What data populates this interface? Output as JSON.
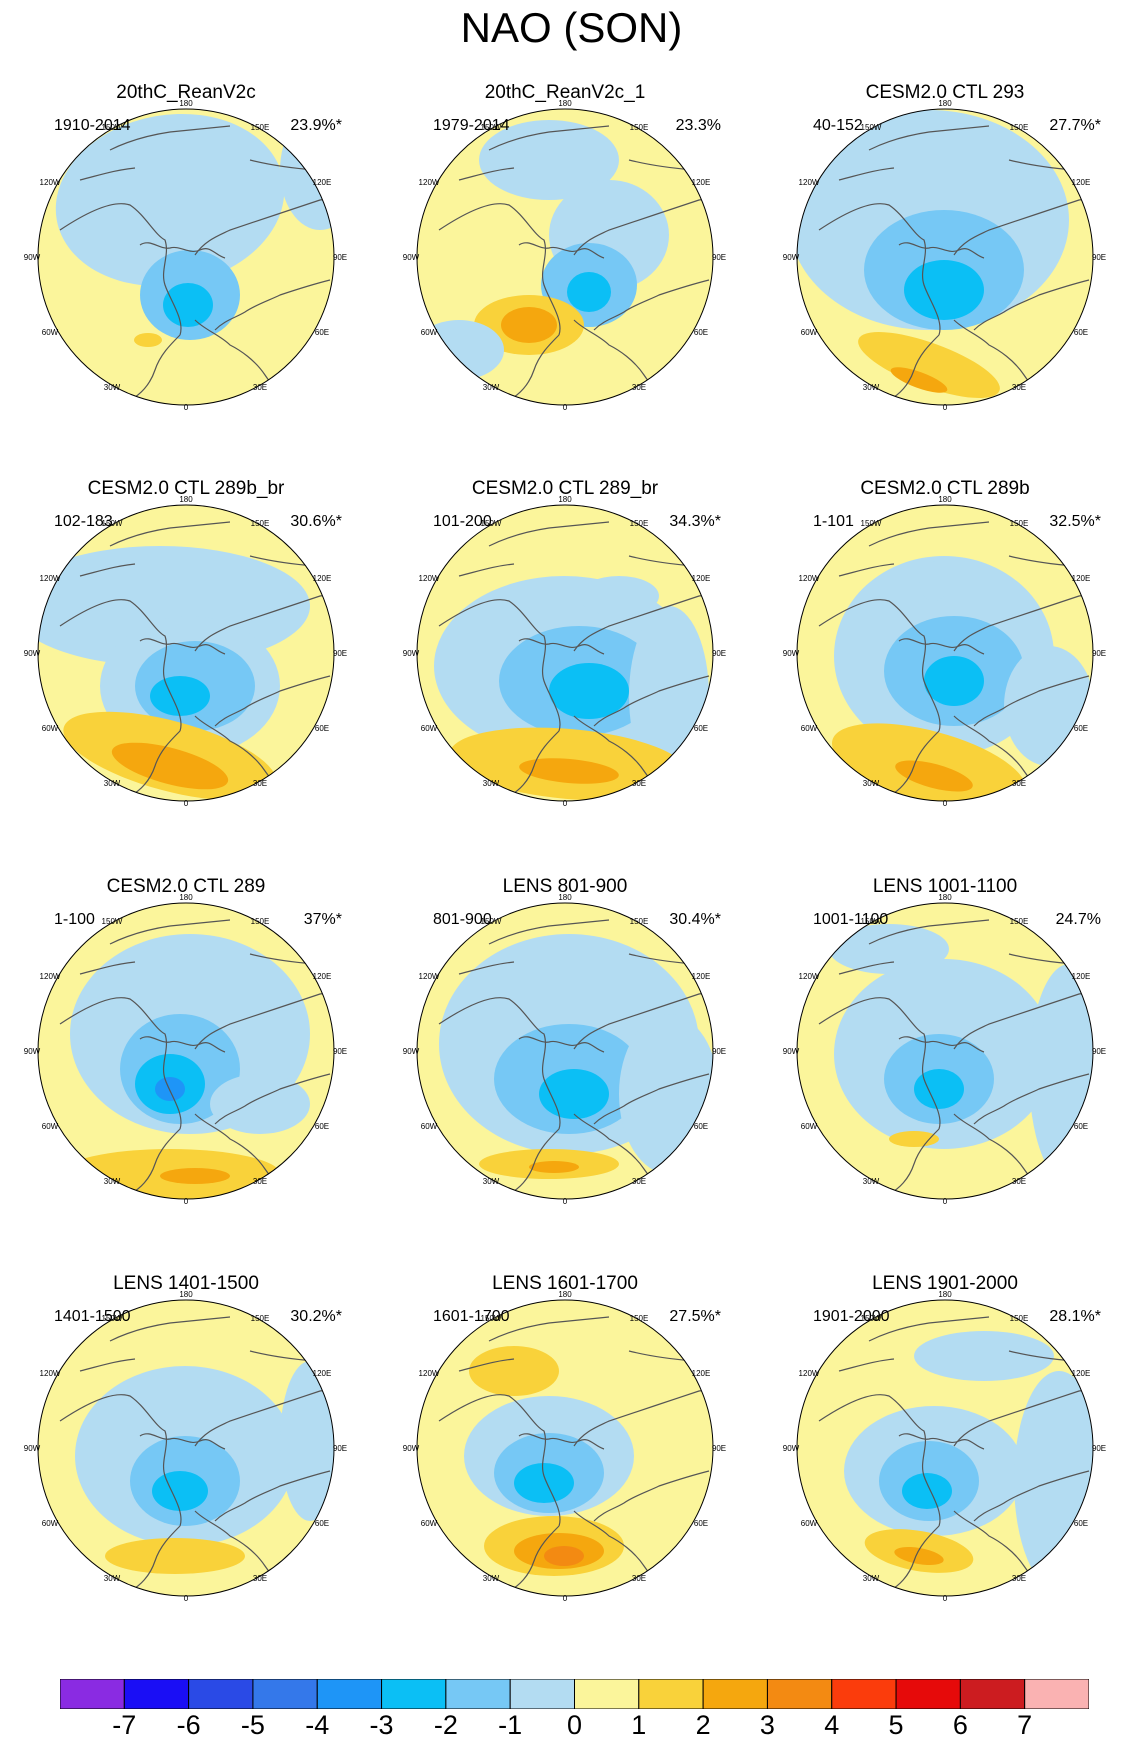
{
  "title": "NAO (SON)",
  "colors": {
    "ocean_bg": "#fbf59b",
    "neg1": "#b3dcf2",
    "neg2": "#76c8f5",
    "neg3": "#0bbff5",
    "neg4": "#1e95f7",
    "neg5": "#3479ee",
    "pos1": "#f9d23a",
    "pos2": "#f5a70e",
    "pos3": "#f38a12",
    "coast": "#555555"
  },
  "map_labels": {
    "lon_top": "180",
    "lon_150w": "150W",
    "lon_150e": "150E",
    "lon_120w": "120W",
    "lon_120e": "120E",
    "lon_90w": "90W",
    "lon_90e": "90E",
    "lon_60w": "60W",
    "lon_60e": "60E",
    "lon_30w": "30W",
    "lon_30e": "30E",
    "lon_bottom": "0"
  },
  "panels": [
    {
      "title": "20thC_ReanV2c",
      "period": "1910-2014",
      "percent": "23.9%*"
    },
    {
      "title": "20thC_ReanV2c_1",
      "period": "1979-2014",
      "percent": "23.3%"
    },
    {
      "title": "CESM2.0 CTL 293",
      "period": "40-152",
      "percent": "27.7%*"
    },
    {
      "title": "CESM2.0 CTL 289b_br",
      "period": "102-183",
      "percent": "30.6%*"
    },
    {
      "title": "CESM2.0 CTL 289_br",
      "period": "101-200",
      "percent": "34.3%*"
    },
    {
      "title": "CESM2.0 CTL 289b",
      "period": "1-101",
      "percent": "32.5%*"
    },
    {
      "title": "CESM2.0 CTL 289",
      "period": "1-100",
      "percent": "37%*"
    },
    {
      "title": "LENS 801-900",
      "period": "801-900",
      "percent": "30.4%*"
    },
    {
      "title": "LENS 1001-1100",
      "period": "1001-1100",
      "percent": "24.7%"
    },
    {
      "title": "LENS 1401-1500",
      "period": "1401-1500",
      "percent": "30.2%*"
    },
    {
      "title": "LENS 1601-1700",
      "period": "1601-1700",
      "percent": "27.5%*"
    },
    {
      "title": "LENS 1901-2000",
      "period": "1901-2000",
      "percent": "28.1%*"
    }
  ],
  "colorbar": {
    "labels": [
      "-7",
      "-6",
      "-5",
      "-4",
      "-3",
      "-2",
      "-1",
      "0",
      "1",
      "2",
      "3",
      "4",
      "5",
      "6",
      "7"
    ],
    "colors": [
      "#8a2be2",
      "#1a0ef5",
      "#2a4ae6",
      "#3478ea",
      "#1e95f7",
      "#0bbff5",
      "#76c8f5",
      "#b3dcf2",
      "#fbf59b",
      "#f9d23a",
      "#f5a70e",
      "#f38a12",
      "#fb3c0c",
      "#e60a0a",
      "#cc1c20",
      "#fab2b2"
    ]
  }
}
